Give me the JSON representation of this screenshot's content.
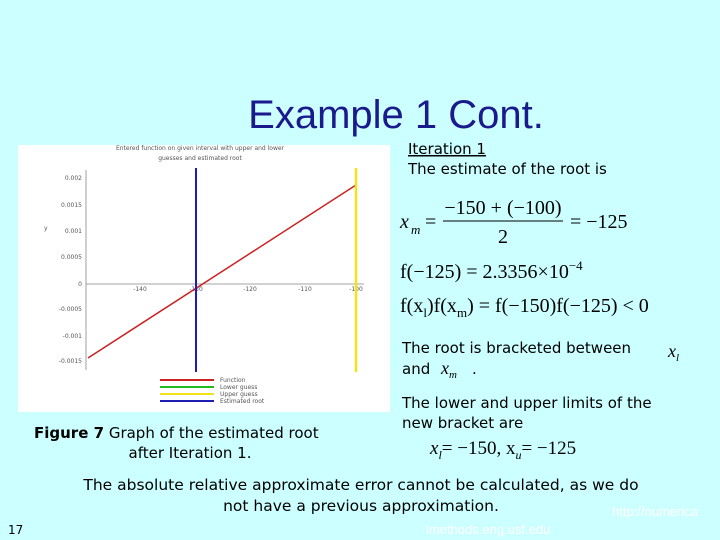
{
  "title": "Example 1 Cont.",
  "iteration": {
    "heading": "Iteration 1",
    "text": "The estimate of the root is"
  },
  "equations": [
    {
      "var": "x",
      "sub": "m",
      "eq": "=",
      "num": "−150 + (−100)",
      "den": "2",
      "rhs": "= −125"
    },
    {
      "lhs": "f(−125) = 2.3356×10",
      "sup": "−4"
    },
    {
      "parts": [
        "f(x",
        "l",
        ")f(x",
        "m",
        ") = f(−150)f(−125) < 0"
      ]
    }
  ],
  "bracket": {
    "text": "The root is bracketed between",
    "x": "x",
    "xsub": "l",
    "and": "and",
    "xm": "x",
    "xmsub": "m",
    "period": "."
  },
  "limits": {
    "text": [
      "The lower and upper limits of the",
      "new bracket are"
    ],
    "eq": [
      "x",
      "l",
      "= −150,  x",
      "u",
      "= −125"
    ]
  },
  "figure": {
    "title": [
      "Entered function on given interval with upper and lower",
      "guesses and estimated root"
    ],
    "ylabel": "y",
    "yticks": [
      "0.002",
      "0.0015",
      "0.001",
      "0.0005",
      "0",
      "-0.0005",
      "-0.001",
      "-0.0015"
    ],
    "xticks": [
      "-140",
      "-130",
      "-120",
      "-110",
      "-100"
    ],
    "legend": [
      "Function",
      "Lower guess",
      "Upper guess",
      "Estimated root"
    ],
    "caption_label": "Figure 7",
    "caption": [
      "Graph of the estimated root",
      "after Iteration 1."
    ]
  },
  "footer": {
    "lines": [
      "The absolute relative approximate error cannot be calculated, as we do",
      "not have a previous approximation."
    ],
    "slide_number": "17",
    "url": [
      "http://numerica",
      "lmethods.eng.usf.edu"
    ]
  }
}
